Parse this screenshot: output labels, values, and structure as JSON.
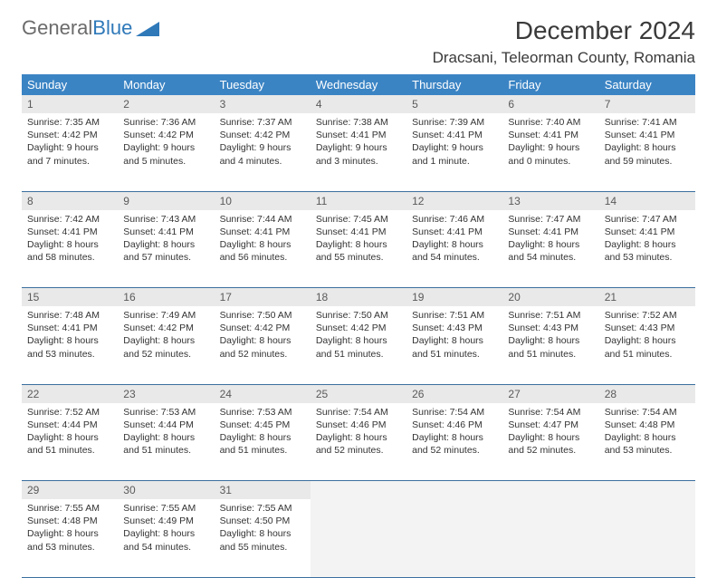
{
  "brand": {
    "part1": "General",
    "part2": "Blue"
  },
  "title": "December 2024",
  "location": "Dracsani, Teleorman County, Romania",
  "colors": {
    "header_bg": "#3b84c4",
    "header_text": "#ffffff",
    "daynum_bg": "#e9e9e9",
    "daynum_text": "#5a5a5a",
    "rule": "#3b6f9e",
    "brand_gray": "#6b6b6b",
    "brand_blue": "#2f79b9"
  },
  "layout": {
    "columns": 7,
    "rows": 5
  },
  "weekdays": [
    "Sunday",
    "Monday",
    "Tuesday",
    "Wednesday",
    "Thursday",
    "Friday",
    "Saturday"
  ],
  "weeks": [
    [
      {
        "day": "1",
        "sunrise": "7:35 AM",
        "sunset": "4:42 PM",
        "daylight": "9 hours and 7 minutes."
      },
      {
        "day": "2",
        "sunrise": "7:36 AM",
        "sunset": "4:42 PM",
        "daylight": "9 hours and 5 minutes."
      },
      {
        "day": "3",
        "sunrise": "7:37 AM",
        "sunset": "4:42 PM",
        "daylight": "9 hours and 4 minutes."
      },
      {
        "day": "4",
        "sunrise": "7:38 AM",
        "sunset": "4:41 PM",
        "daylight": "9 hours and 3 minutes."
      },
      {
        "day": "5",
        "sunrise": "7:39 AM",
        "sunset": "4:41 PM",
        "daylight": "9 hours and 1 minute."
      },
      {
        "day": "6",
        "sunrise": "7:40 AM",
        "sunset": "4:41 PM",
        "daylight": "9 hours and 0 minutes."
      },
      {
        "day": "7",
        "sunrise": "7:41 AM",
        "sunset": "4:41 PM",
        "daylight": "8 hours and 59 minutes."
      }
    ],
    [
      {
        "day": "8",
        "sunrise": "7:42 AM",
        "sunset": "4:41 PM",
        "daylight": "8 hours and 58 minutes."
      },
      {
        "day": "9",
        "sunrise": "7:43 AM",
        "sunset": "4:41 PM",
        "daylight": "8 hours and 57 minutes."
      },
      {
        "day": "10",
        "sunrise": "7:44 AM",
        "sunset": "4:41 PM",
        "daylight": "8 hours and 56 minutes."
      },
      {
        "day": "11",
        "sunrise": "7:45 AM",
        "sunset": "4:41 PM",
        "daylight": "8 hours and 55 minutes."
      },
      {
        "day": "12",
        "sunrise": "7:46 AM",
        "sunset": "4:41 PM",
        "daylight": "8 hours and 54 minutes."
      },
      {
        "day": "13",
        "sunrise": "7:47 AM",
        "sunset": "4:41 PM",
        "daylight": "8 hours and 54 minutes."
      },
      {
        "day": "14",
        "sunrise": "7:47 AM",
        "sunset": "4:41 PM",
        "daylight": "8 hours and 53 minutes."
      }
    ],
    [
      {
        "day": "15",
        "sunrise": "7:48 AM",
        "sunset": "4:41 PM",
        "daylight": "8 hours and 53 minutes."
      },
      {
        "day": "16",
        "sunrise": "7:49 AM",
        "sunset": "4:42 PM",
        "daylight": "8 hours and 52 minutes."
      },
      {
        "day": "17",
        "sunrise": "7:50 AM",
        "sunset": "4:42 PM",
        "daylight": "8 hours and 52 minutes."
      },
      {
        "day": "18",
        "sunrise": "7:50 AM",
        "sunset": "4:42 PM",
        "daylight": "8 hours and 51 minutes."
      },
      {
        "day": "19",
        "sunrise": "7:51 AM",
        "sunset": "4:43 PM",
        "daylight": "8 hours and 51 minutes."
      },
      {
        "day": "20",
        "sunrise": "7:51 AM",
        "sunset": "4:43 PM",
        "daylight": "8 hours and 51 minutes."
      },
      {
        "day": "21",
        "sunrise": "7:52 AM",
        "sunset": "4:43 PM",
        "daylight": "8 hours and 51 minutes."
      }
    ],
    [
      {
        "day": "22",
        "sunrise": "7:52 AM",
        "sunset": "4:44 PM",
        "daylight": "8 hours and 51 minutes."
      },
      {
        "day": "23",
        "sunrise": "7:53 AM",
        "sunset": "4:44 PM",
        "daylight": "8 hours and 51 minutes."
      },
      {
        "day": "24",
        "sunrise": "7:53 AM",
        "sunset": "4:45 PM",
        "daylight": "8 hours and 51 minutes."
      },
      {
        "day": "25",
        "sunrise": "7:54 AM",
        "sunset": "4:46 PM",
        "daylight": "8 hours and 52 minutes."
      },
      {
        "day": "26",
        "sunrise": "7:54 AM",
        "sunset": "4:46 PM",
        "daylight": "8 hours and 52 minutes."
      },
      {
        "day": "27",
        "sunrise": "7:54 AM",
        "sunset": "4:47 PM",
        "daylight": "8 hours and 52 minutes."
      },
      {
        "day": "28",
        "sunrise": "7:54 AM",
        "sunset": "4:48 PM",
        "daylight": "8 hours and 53 minutes."
      }
    ],
    [
      {
        "day": "29",
        "sunrise": "7:55 AM",
        "sunset": "4:48 PM",
        "daylight": "8 hours and 53 minutes."
      },
      {
        "day": "30",
        "sunrise": "7:55 AM",
        "sunset": "4:49 PM",
        "daylight": "8 hours and 54 minutes."
      },
      {
        "day": "31",
        "sunrise": "7:55 AM",
        "sunset": "4:50 PM",
        "daylight": "8 hours and 55 minutes."
      },
      null,
      null,
      null,
      null
    ]
  ],
  "labels": {
    "sunrise": "Sunrise: ",
    "sunset": "Sunset: ",
    "daylight": "Daylight: "
  }
}
